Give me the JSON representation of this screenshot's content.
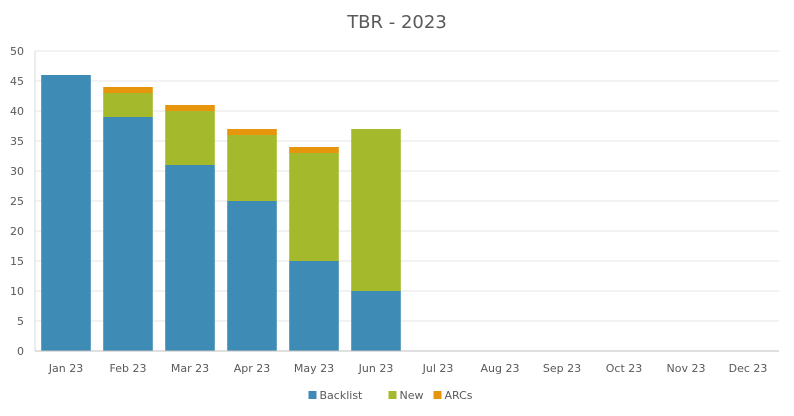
{
  "chart_data": {
    "type": "bar",
    "stacked": true,
    "title": "TBR - 2023",
    "xlabel": "",
    "ylabel": "",
    "ylim": [
      0,
      50
    ],
    "ytick_step": 5,
    "grid": true,
    "legend_position": "bottom",
    "categories": [
      "Jan 23",
      "Feb 23",
      "Mar 23",
      "Apr 23",
      "May 23",
      "Jun 23",
      "Jul 23",
      "Aug 23",
      "Sep 23",
      "Oct 23",
      "Nov 23",
      "Dec 23"
    ],
    "series": [
      {
        "name": "Backlist",
        "color": "#3E8BB5",
        "values": [
          46,
          39,
          31,
          25,
          15,
          10,
          0,
          0,
          0,
          0,
          0,
          0
        ]
      },
      {
        "name": "New",
        "color": "#A4BA2C",
        "values": [
          0,
          4,
          9,
          11,
          18,
          27,
          0,
          0,
          0,
          0,
          0,
          0
        ]
      },
      {
        "name": "ARCs",
        "color": "#E8950E",
        "values": [
          0,
          1,
          1,
          1,
          1,
          0,
          0,
          0,
          0,
          0,
          0,
          0
        ]
      }
    ]
  }
}
